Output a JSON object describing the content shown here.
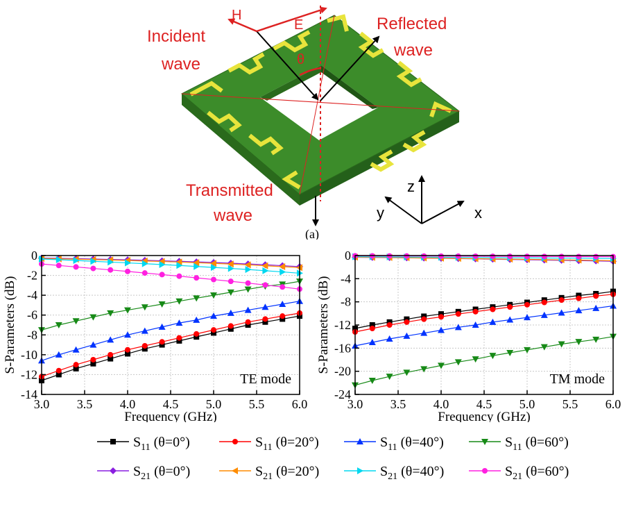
{
  "figure": {
    "panel_label": "(a)",
    "diagram_labels": {
      "h_field": "H",
      "e_field": "E",
      "incident": [
        "Incident",
        "wave"
      ],
      "reflected": [
        "Reflected",
        "wave"
      ],
      "transmitted": [
        "Transmitted",
        "wave"
      ],
      "theta": "θ",
      "axis_z": "z",
      "axis_y": "y",
      "axis_x": "x"
    }
  },
  "colors": {
    "substrate_top": "#3c8c2a",
    "substrate_side": "#2a6a1c",
    "metal": "#e8e43c",
    "annotation_red": "#dd2222"
  },
  "legend": [
    {
      "param": "S",
      "sub": "11",
      "theta": " (θ=0°)",
      "color": "#000000",
      "marker": "square"
    },
    {
      "param": "S",
      "sub": "11",
      "theta": " (θ=20°)",
      "color": "#ff0000",
      "marker": "circle"
    },
    {
      "param": "S",
      "sub": "11",
      "theta": " (θ=40°)",
      "color": "#0033ff",
      "marker": "triangle-up"
    },
    {
      "param": "S",
      "sub": "11",
      "theta": " (θ=60°)",
      "color": "#178a17",
      "marker": "triangle-down"
    },
    {
      "param": "S",
      "sub": "21",
      "theta": " (θ=0°)",
      "color": "#8a1ee0",
      "marker": "diamond"
    },
    {
      "param": "S",
      "sub": "21",
      "theta": " (θ=20°)",
      "color": "#ff8c00",
      "marker": "triangle-left"
    },
    {
      "param": "S",
      "sub": "21",
      "theta": " (θ=40°)",
      "color": "#00d8f0",
      "marker": "triangle-right"
    },
    {
      "param": "S",
      "sub": "21",
      "theta": " (θ=60°)",
      "color": "#ff20e0",
      "marker": "circle"
    }
  ],
  "chart_data": [
    {
      "type": "line",
      "annotation": "TE mode",
      "xlabel": "Frequency (GHz)",
      "ylabel": "S-Parameters (dB)",
      "xlim": [
        3.0,
        6.0
      ],
      "ylim": [
        -14,
        0
      ],
      "xticks": [
        "3.0",
        "3.5",
        "4.0",
        "4.5",
        "5.0",
        "5.5",
        "6.0"
      ],
      "yticks": [
        "0",
        "-2",
        "-4",
        "-6",
        "-8",
        "-10",
        "-12",
        "-14"
      ],
      "x": [
        3.0,
        3.2,
        3.4,
        3.6,
        3.8,
        4.0,
        4.2,
        4.4,
        4.6,
        4.8,
        5.0,
        5.2,
        5.4,
        5.6,
        5.8,
        6.0
      ],
      "grid": true,
      "series": [
        {
          "name": "S11 (θ=0°)",
          "values": [
            -12.6,
            -12.0,
            -11.4,
            -10.9,
            -10.4,
            -9.9,
            -9.4,
            -9.0,
            -8.6,
            -8.2,
            -7.8,
            -7.4,
            -7.0,
            -6.7,
            -6.4,
            -6.1
          ]
        },
        {
          "name": "S11 (θ=20°)",
          "values": [
            -12.2,
            -11.6,
            -11.0,
            -10.5,
            -10.0,
            -9.5,
            -9.1,
            -8.7,
            -8.3,
            -7.9,
            -7.5,
            -7.1,
            -6.7,
            -6.4,
            -6.1,
            -5.8
          ]
        },
        {
          "name": "S11 (θ=40°)",
          "values": [
            -10.6,
            -10.0,
            -9.5,
            -9.0,
            -8.5,
            -8.0,
            -7.6,
            -7.2,
            -6.8,
            -6.5,
            -6.1,
            -5.8,
            -5.5,
            -5.2,
            -4.9,
            -4.6
          ]
        },
        {
          "name": "S11 (θ=60°)",
          "values": [
            -7.5,
            -7.0,
            -6.6,
            -6.2,
            -5.8,
            -5.5,
            -5.2,
            -4.9,
            -4.6,
            -4.3,
            -4.0,
            -3.7,
            -3.4,
            -3.1,
            -2.9,
            -2.6
          ]
        },
        {
          "name": "S21 (θ=0°)",
          "values": [
            -0.25,
            -0.28,
            -0.31,
            -0.35,
            -0.39,
            -0.43,
            -0.48,
            -0.53,
            -0.58,
            -0.64,
            -0.7,
            -0.77,
            -0.85,
            -0.93,
            -1.02,
            -1.12
          ]
        },
        {
          "name": "S21 (θ=20°)",
          "values": [
            -0.3,
            -0.33,
            -0.37,
            -0.41,
            -0.45,
            -0.5,
            -0.55,
            -0.6,
            -0.66,
            -0.72,
            -0.79,
            -0.86,
            -0.94,
            -1.03,
            -1.12,
            -1.22
          ]
        },
        {
          "name": "S21 (θ=40°)",
          "values": [
            -0.35,
            -0.42,
            -0.5,
            -0.58,
            -0.66,
            -0.74,
            -0.82,
            -0.91,
            -1.0,
            -1.1,
            -1.2,
            -1.3,
            -1.41,
            -1.53,
            -1.65,
            -1.78
          ]
        },
        {
          "name": "S21 (θ=60°)",
          "values": [
            -0.85,
            -1.0,
            -1.15,
            -1.3,
            -1.45,
            -1.6,
            -1.76,
            -1.92,
            -2.08,
            -2.25,
            -2.42,
            -2.6,
            -2.78,
            -2.97,
            -3.17,
            -3.38
          ]
        }
      ]
    },
    {
      "type": "line",
      "annotation": "TM mode",
      "xlabel": "Frequency (GHz)",
      "ylabel": "S-Parameters (dB)",
      "xlim": [
        3.0,
        6.0
      ],
      "ylim": [
        -24,
        0
      ],
      "xticks": [
        "3.0",
        "3.5",
        "4.0",
        "4.5",
        "5.0",
        "5.5",
        "6.0"
      ],
      "yticks": [
        "0",
        "-4",
        "-8",
        "-12",
        "-16",
        "-20",
        "-24"
      ],
      "x": [
        3.0,
        3.2,
        3.4,
        3.6,
        3.8,
        4.0,
        4.2,
        4.4,
        4.6,
        4.8,
        5.0,
        5.2,
        5.4,
        5.6,
        5.8,
        6.0
      ],
      "grid": true,
      "series": [
        {
          "name": "S11 (θ=0°)",
          "values": [
            -12.6,
            -12.0,
            -11.5,
            -11.0,
            -10.5,
            -10.1,
            -9.7,
            -9.3,
            -8.9,
            -8.5,
            -8.1,
            -7.7,
            -7.3,
            -6.9,
            -6.6,
            -6.2
          ]
        },
        {
          "name": "S11 (θ=20°)",
          "values": [
            -13.2,
            -12.6,
            -12.0,
            -11.5,
            -11.0,
            -10.6,
            -10.1,
            -9.7,
            -9.3,
            -8.9,
            -8.5,
            -8.1,
            -7.7,
            -7.4,
            -7.0,
            -6.7
          ]
        },
        {
          "name": "S11 (θ=40°)",
          "values": [
            -15.6,
            -15.0,
            -14.4,
            -13.9,
            -13.4,
            -12.9,
            -12.4,
            -12.0,
            -11.5,
            -11.1,
            -10.7,
            -10.3,
            -9.9,
            -9.5,
            -9.1,
            -8.7
          ]
        },
        {
          "name": "S11 (θ=60°)",
          "values": [
            -22.4,
            -21.6,
            -20.9,
            -20.2,
            -19.6,
            -19.0,
            -18.4,
            -17.9,
            -17.3,
            -16.8,
            -16.3,
            -15.8,
            -15.3,
            -14.9,
            -14.5,
            -14.0
          ]
        },
        {
          "name": "S21 (θ=0°)",
          "values": [
            -0.3,
            -0.33,
            -0.36,
            -0.4,
            -0.44,
            -0.48,
            -0.53,
            -0.58,
            -0.63,
            -0.68,
            -0.73,
            -0.78,
            -0.83,
            -0.88,
            -0.93,
            -1.0
          ]
        },
        {
          "name": "S21 (θ=20°)",
          "values": [
            -0.28,
            -0.31,
            -0.34,
            -0.38,
            -0.42,
            -0.46,
            -0.5,
            -0.54,
            -0.58,
            -0.62,
            -0.66,
            -0.7,
            -0.74,
            -0.78,
            -0.83,
            -0.9
          ]
        },
        {
          "name": "S21 (θ=40°)",
          "values": [
            -0.2,
            -0.22,
            -0.24,
            -0.26,
            -0.28,
            -0.3,
            -0.32,
            -0.34,
            -0.36,
            -0.38,
            -0.4,
            -0.42,
            -0.44,
            -0.46,
            -0.48,
            -0.5
          ]
        },
        {
          "name": "S21 (θ=60°)",
          "values": [
            -0.05,
            -0.06,
            -0.07,
            -0.08,
            -0.09,
            -0.1,
            -0.11,
            -0.12,
            -0.13,
            -0.14,
            -0.15,
            -0.16,
            -0.17,
            -0.18,
            -0.19,
            -0.2
          ]
        }
      ]
    }
  ]
}
